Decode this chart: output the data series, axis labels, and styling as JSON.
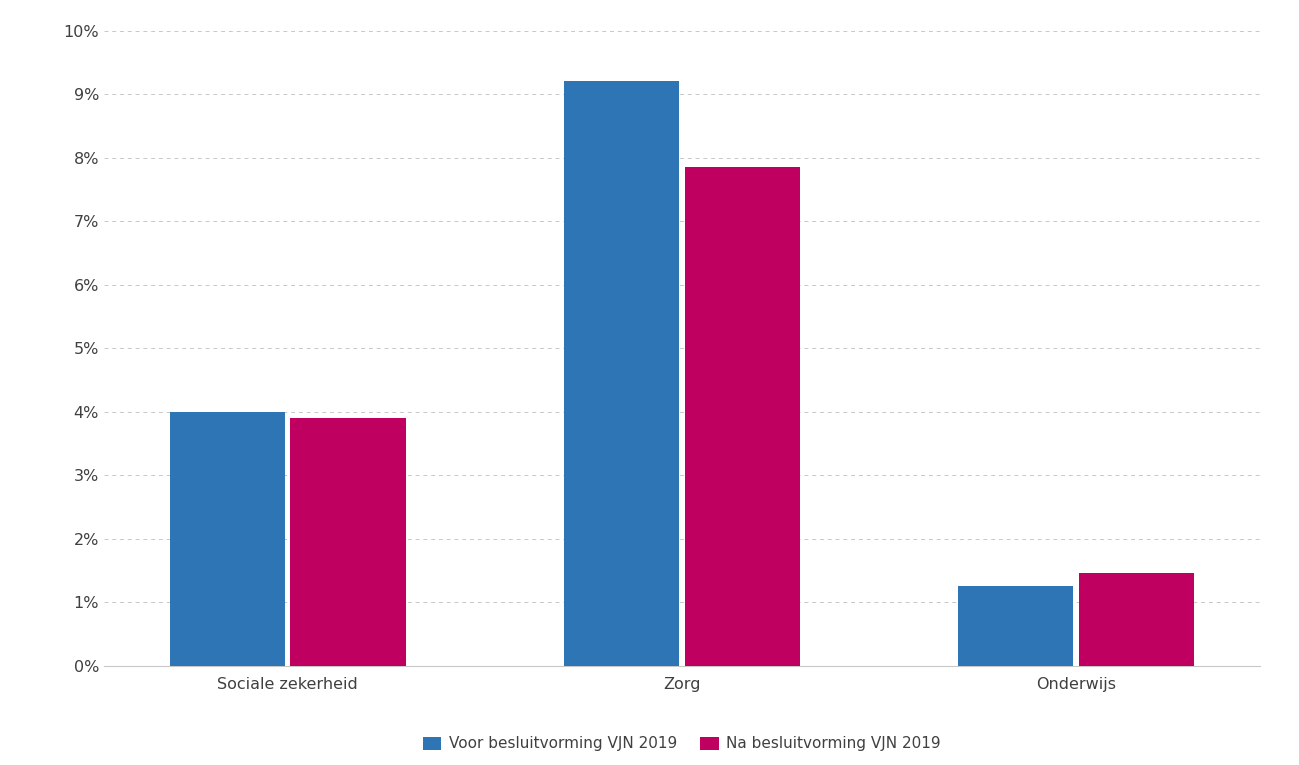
{
  "categories": [
    "Sociale zekerheid",
    "Zorg",
    "Onderwijs"
  ],
  "series": [
    {
      "label": "Voor besluitvorming VJN 2019",
      "color": "#2E75B6",
      "values": [
        0.04,
        0.092,
        0.0125
      ]
    },
    {
      "label": "Na besluitvorming VJN 2019",
      "color": "#C00060",
      "values": [
        0.039,
        0.0785,
        0.0145
      ]
    }
  ],
  "ylim": [
    0,
    0.1
  ],
  "yticks": [
    0.0,
    0.01,
    0.02,
    0.03,
    0.04,
    0.05,
    0.06,
    0.07,
    0.08,
    0.09,
    0.1
  ],
  "background_color": "#FFFFFF",
  "grid_color": "#C8C8C8",
  "bar_width": 0.22,
  "group_positions": [
    0.25,
    1.0,
    1.75
  ],
  "xlim": [
    -0.1,
    2.1
  ],
  "legend_fontsize": 11,
  "tick_fontsize": 11.5,
  "axis_label_color": "#404040"
}
